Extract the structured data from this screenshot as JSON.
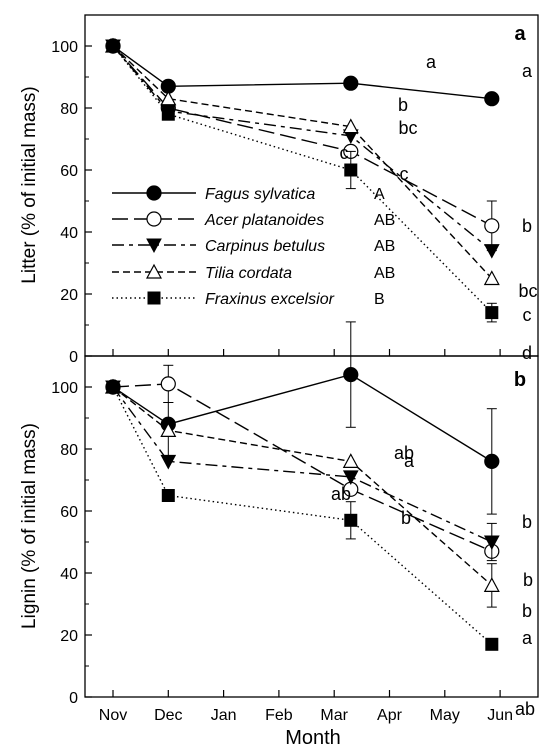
{
  "chart_data": [
    {
      "type": "line",
      "panel_label": "a",
      "ylabel": "Litter (% of initial mass)",
      "xlabel": "",
      "categories": [
        "Nov",
        "Dec",
        "Jan",
        "Feb",
        "Mar",
        "Apr",
        "May",
        "Jun"
      ],
      "ylim": [
        0,
        110
      ],
      "yticks": [
        0,
        20,
        40,
        60,
        80,
        100
      ],
      "legend_position": "lower-left",
      "series": [
        {
          "name": "Fagus sylvatica",
          "group": "A",
          "marker": "filled-circle",
          "dash": "solid",
          "x": [
            0,
            1,
            4.3,
            6.85
          ],
          "values": [
            100,
            87,
            88,
            83
          ],
          "errors": [
            0,
            0,
            0,
            0
          ],
          "end_letter": "a",
          "mid_letter": "a"
        },
        {
          "name": "Acer platanoides",
          "group": "AB",
          "marker": "open-circle",
          "dash": "long-dash",
          "x": [
            0,
            1,
            4.3,
            6.85
          ],
          "values": [
            100,
            80,
            66,
            42
          ],
          "errors": [
            0,
            0,
            0,
            8
          ],
          "end_letter": "b",
          "mid_letter": "c"
        },
        {
          "name": "Carpinus betulus",
          "group": "AB",
          "marker": "filled-down-triangle",
          "dash": "dash",
          "x": [
            0,
            1,
            4.3,
            6.85
          ],
          "values": [
            100,
            79,
            71,
            34
          ],
          "errors": [
            0,
            0,
            0,
            0
          ],
          "end_letter": "bc",
          "mid_letter": "bc"
        },
        {
          "name": "Tilia cordata",
          "group": "AB",
          "marker": "open-triangle",
          "dash": "short-dash",
          "x": [
            0,
            1,
            4.3,
            6.85
          ],
          "values": [
            100,
            83,
            74,
            25
          ],
          "errors": [
            0,
            0,
            0,
            0
          ],
          "end_letter": "c",
          "mid_letter": "b"
        },
        {
          "name": "Fraxinus excelsior",
          "group": "B",
          "marker": "filled-square",
          "dash": "dotted",
          "x": [
            0,
            1,
            4.3,
            6.85
          ],
          "values": [
            100,
            78,
            60,
            14
          ],
          "errors": [
            0,
            0,
            6,
            3
          ],
          "end_letter": "d",
          "mid_letter": "c"
        }
      ]
    },
    {
      "type": "line",
      "panel_label": "b",
      "ylabel": "Lignin (% of initial mass)",
      "xlabel": "Month",
      "categories": [
        "Nov",
        "Dec",
        "Jan",
        "Feb",
        "Mar",
        "Apr",
        "May",
        "Jun"
      ],
      "ylim": [
        0,
        110
      ],
      "yticks": [
        0,
        20,
        40,
        60,
        80,
        100
      ],
      "series": [
        {
          "name": "Fagus sylvatica",
          "marker": "filled-circle",
          "dash": "solid",
          "x": [
            0,
            1,
            4.3,
            6.85
          ],
          "values": [
            100,
            88,
            104,
            76
          ],
          "errors": [
            0,
            0,
            17,
            17
          ],
          "end_letter": "a",
          "mid_letter": "ab"
        },
        {
          "name": "Acer platanoides",
          "marker": "open-circle",
          "dash": "long-dash",
          "x": [
            0,
            1,
            4.3,
            6.85
          ],
          "values": [
            100,
            101,
            67,
            47
          ],
          "errors": [
            0,
            6,
            0,
            0
          ],
          "end_letter": "b",
          "mid_letter": "ab"
        },
        {
          "name": "Carpinus betulus",
          "marker": "filled-down-triangle",
          "dash": "dash",
          "x": [
            0,
            1,
            4.3,
            6.85
          ],
          "values": [
            100,
            76,
            71,
            50
          ],
          "errors": [
            0,
            0,
            0,
            6
          ],
          "end_letter": "b",
          "mid_letter": ""
        },
        {
          "name": "Tilia cordata",
          "marker": "open-triangle",
          "dash": "short-dash",
          "x": [
            0,
            1,
            4.3,
            6.85
          ],
          "values": [
            100,
            86,
            76,
            36
          ],
          "errors": [
            0,
            9,
            0,
            7
          ],
          "end_letter": "b",
          "mid_letter": "a"
        },
        {
          "name": "Fraxinus excelsior",
          "marker": "filled-square",
          "dash": "dotted",
          "x": [
            0,
            1,
            4.3,
            6.85
          ],
          "values": [
            100,
            65,
            57,
            17
          ],
          "errors": [
            0,
            0,
            6,
            0
          ],
          "end_letter": "ab",
          "mid_letter": "b"
        }
      ]
    }
  ],
  "colors": {
    "ink": "#000000",
    "background": "#ffffff"
  }
}
